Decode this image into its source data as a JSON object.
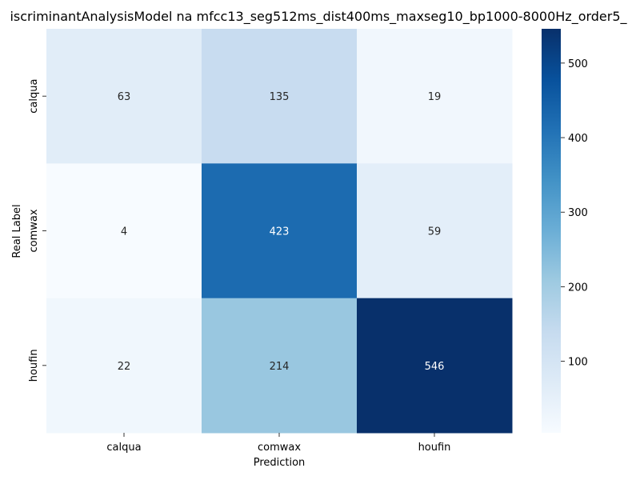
{
  "chart_data": {
    "type": "heatmap",
    "title": "iscriminantAnalysisModel na mfcc13_seg512ms_dist400ms_maxseg10_bp1000-8000Hz_order5_",
    "xlabel": "Prediction",
    "ylabel": "Real Label",
    "x_categories": [
      "calqua",
      "comwax",
      "houfin"
    ],
    "y_categories": [
      "calqua",
      "comwax",
      "houfin"
    ],
    "values": [
      [
        63,
        135,
        19
      ],
      [
        4,
        423,
        59
      ],
      [
        22,
        214,
        546
      ]
    ],
    "colormap": "Blues",
    "colorbar": {
      "min": 4,
      "max": 546,
      "ticks": [
        100,
        200,
        300,
        400,
        500
      ]
    }
  }
}
